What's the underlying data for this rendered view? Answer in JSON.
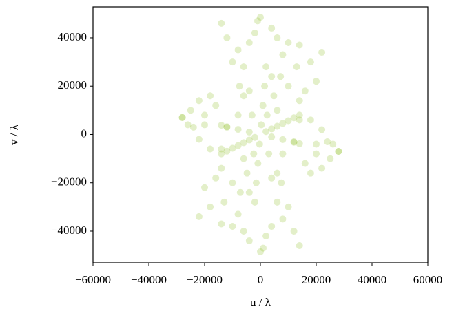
{
  "chart_data": {
    "type": "scatter",
    "xlabel": "u / λ",
    "ylabel": "v / λ",
    "color": "#8fbf26",
    "x": [
      2000,
      4000,
      6000,
      8000,
      10000,
      12000,
      14000,
      -4000,
      -8000,
      -12000,
      -14000,
      300,
      900,
      1500,
      2000,
      -3000,
      -6000,
      -7500,
      2400,
      4800,
      7200,
      -1000,
      0,
      -14000,
      -12000,
      -8000,
      -4000,
      4000,
      6000,
      10000,
      14000,
      22000,
      18000,
      13000,
      8000,
      -2000,
      -10000,
      -18000,
      -22000,
      -25000,
      -28000,
      -20000,
      -16000,
      -24000,
      -6000,
      4000,
      10000,
      16000,
      20000,
      14000,
      18000,
      22000,
      26000,
      28000,
      20000,
      12000,
      -8000,
      -4000,
      6000,
      -14000,
      -2000,
      -4000,
      -6000,
      -8000,
      -10000,
      -12000,
      -14000,
      4000,
      8000,
      12000,
      14000,
      -300,
      -900,
      -1500,
      -2000,
      3000,
      6000,
      7500,
      -2400,
      -4800,
      -7200,
      1000,
      0,
      14000,
      12000,
      8000,
      4000,
      -4000,
      -6000,
      -10000,
      -14000,
      -22000,
      -18000,
      -13000,
      -8000,
      2000,
      10000,
      18000,
      22000,
      25000,
      28000,
      20000,
      16000,
      24000,
      6000,
      -4000,
      -10000,
      -16000,
      -20000,
      -14000,
      -18000,
      -22000,
      -26000,
      -28000,
      -20000,
      -12000,
      8000,
      4000,
      -6000,
      14000
    ],
    "values": [
      1200,
      2300,
      3400,
      4600,
      5700,
      6900,
      8000,
      1000,
      2100,
      3200,
      3800,
      4000,
      12000,
      20000,
      28000,
      8000,
      16000,
      20000,
      8000,
      16000,
      24000,
      47000,
      48500,
      46000,
      40000,
      35000,
      38000,
      44000,
      40000,
      38000,
      37000,
      34000,
      30000,
      28000,
      33000,
      42000,
      30000,
      16000,
      14000,
      10000,
      7000,
      8000,
      12000,
      3000,
      28000,
      24000,
      20000,
      18000,
      22000,
      14000,
      6000,
      2000,
      -4000,
      -7000,
      -4000,
      -3000,
      8000,
      18000,
      10000,
      -6000,
      -1200,
      -2300,
      -3400,
      -4600,
      -5700,
      -6900,
      -8000,
      -1000,
      -2100,
      -3200,
      -3800,
      -4000,
      -12000,
      -20000,
      -28000,
      -8000,
      -16000,
      -20000,
      -8000,
      -16000,
      -24000,
      -47000,
      -48500,
      -46000,
      -40000,
      -35000,
      -38000,
      -44000,
      -40000,
      -38000,
      -37000,
      -34000,
      -30000,
      -28000,
      -33000,
      -42000,
      -30000,
      -16000,
      -14000,
      -10000,
      -7000,
      -8000,
      -12000,
      -3000,
      -28000,
      -24000,
      -20000,
      -18000,
      -22000,
      -14000,
      -6000,
      -2000,
      4000,
      7000,
      4000,
      3000,
      -8000,
      -18000,
      -10000,
      6000
    ],
    "xlim": [
      -60000,
      60000
    ],
    "xticks": [
      {
        "value": -60000,
        "label": "−60000"
      },
      {
        "value": -40000,
        "label": "−40000"
      },
      {
        "value": -20000,
        "label": "−20000"
      },
      0,
      20000,
      40000,
      60000
    ],
    "ylim": [
      -53100,
      52800
    ],
    "yticks": [
      {
        "value": -40000,
        "label": "−40000"
      },
      {
        "value": -20000,
        "label": "−20000"
      },
      0,
      20000,
      40000
    ]
  }
}
